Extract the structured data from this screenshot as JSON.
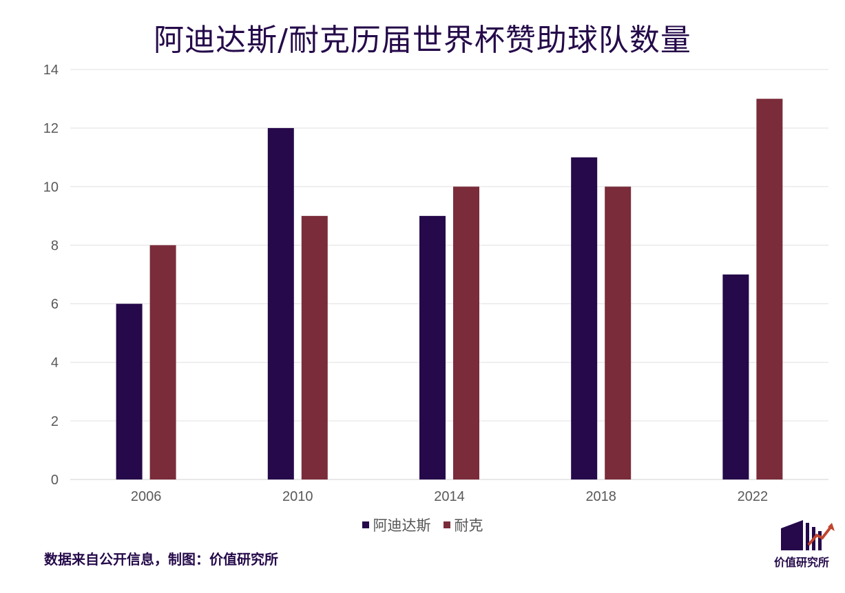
{
  "title": "阿迪达斯/耐克历届世界杯赞助球队数量",
  "footer": "数据来自公开信息，制图：价值研究所",
  "logo_text": "价值研究所",
  "colors": {
    "adidas": "#25094A",
    "nike": "#7A2C3A",
    "title": "#250A4A",
    "logo_accent": "#C0452F"
  },
  "chart_data": {
    "type": "bar",
    "categories": [
      "2006",
      "2010",
      "2014",
      "2018",
      "2022"
    ],
    "series": [
      {
        "name": "阿迪达斯",
        "values": [
          6,
          12,
          9,
          11,
          7
        ]
      },
      {
        "name": "耐克",
        "values": [
          8,
          9,
          10,
          10,
          13
        ]
      }
    ],
    "yticks": [
      "0",
      "2",
      "4",
      "6",
      "8",
      "10",
      "12",
      "14"
    ],
    "ylim": [
      0,
      14
    ],
    "grid": true,
    "legend_position": "bottom"
  },
  "legend": [
    {
      "label": "阿迪达斯"
    },
    {
      "label": "耐克"
    }
  ]
}
